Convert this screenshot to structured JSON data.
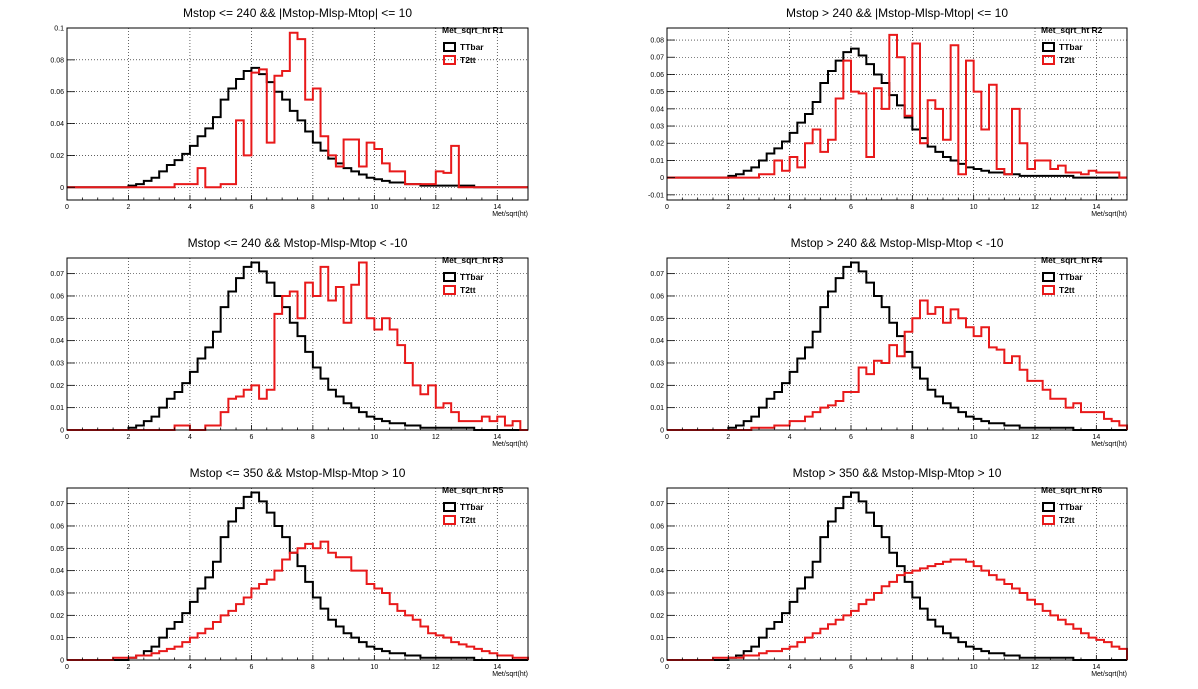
{
  "chart_data": [
    {
      "type": "histogram",
      "title": "Mstop <= 240 && |Mstop-Mlsp-Mtop| <= 10",
      "xlabel": "Met/sqrt(ht)",
      "legend_title": "Met_sqrt_ht  R1",
      "xlim": [
        0,
        15
      ],
      "ylim": [
        -0.008,
        0.1
      ],
      "yticks": [
        0,
        0.02,
        0.04,
        0.06,
        0.08,
        0.1
      ],
      "ytick_labels": [
        "0",
        "0.02",
        "0.04",
        "0.06",
        "0.08",
        "0.1"
      ],
      "xticks": [
        0,
        2,
        4,
        6,
        8,
        10,
        12,
        14
      ],
      "grid": true,
      "legend_position": "top-right",
      "bin_width": 0.25,
      "series": [
        {
          "name": "TTbar",
          "color": "#000000",
          "values": [
            0,
            0,
            0,
            0,
            0,
            0,
            0,
            0,
            0.001,
            0.002,
            0.004,
            0.006,
            0.01,
            0.014,
            0.017,
            0.021,
            0.026,
            0.032,
            0.037,
            0.044,
            0.055,
            0.062,
            0.068,
            0.073,
            0.075,
            0.071,
            0.066,
            0.06,
            0.055,
            0.048,
            0.042,
            0.035,
            0.028,
            0.023,
            0.018,
            0.015,
            0.012,
            0.01,
            0.008,
            0.006,
            0.005,
            0.004,
            0.003,
            0.003,
            0.002,
            0.002,
            0.001,
            0.001,
            0.001,
            0.001,
            0.001,
            0.001,
            0.001,
            0,
            0,
            0,
            0,
            0,
            0,
            0
          ]
        },
        {
          "name": "T2tt",
          "color": "#e8191a",
          "values": [
            0,
            0,
            0,
            0,
            0,
            0,
            0,
            0,
            0,
            0,
            0,
            0,
            0,
            0,
            0.002,
            0.002,
            0.002,
            0.012,
            0,
            0,
            0.002,
            0.002,
            0.042,
            0.02,
            0.072,
            0.074,
            0.028,
            0.07,
            0.073,
            0.097,
            0.093,
            0.055,
            0.062,
            0.032,
            0.02,
            0.013,
            0.03,
            0.03,
            0.013,
            0.028,
            0.024,
            0.015,
            0.01,
            0.01,
            0.002,
            0.002,
            0.002,
            0.002,
            0.01,
            0.009,
            0.026,
            0,
            0,
            0,
            0,
            0,
            0,
            0,
            0,
            0
          ]
        }
      ]
    },
    {
      "type": "histogram",
      "title": "Mstop > 240 && |Mstop-Mlsp-Mtop| <= 10",
      "xlabel": "Met/sqrt(ht)",
      "legend_title": "Met_sqrt_ht  R2",
      "xlim": [
        0,
        15
      ],
      "ylim": [
        -0.013,
        0.087
      ],
      "yticks": [
        -0.01,
        0,
        0.01,
        0.02,
        0.03,
        0.04,
        0.05,
        0.06,
        0.07,
        0.08
      ],
      "ytick_labels": [
        "-0.01",
        "0",
        "0.01",
        "0.02",
        "0.03",
        "0.04",
        "0.05",
        "0.06",
        "0.07",
        "0.08"
      ],
      "xticks": [
        0,
        2,
        4,
        6,
        8,
        10,
        12,
        14
      ],
      "grid": true,
      "legend_position": "top-right",
      "bin_width": 0.25,
      "series": [
        {
          "name": "TTbar",
          "color": "#000000",
          "values": [
            0,
            0,
            0,
            0,
            0,
            0,
            0,
            0,
            0.001,
            0.002,
            0.004,
            0.006,
            0.01,
            0.014,
            0.017,
            0.021,
            0.026,
            0.032,
            0.037,
            0.044,
            0.055,
            0.062,
            0.068,
            0.073,
            0.075,
            0.071,
            0.066,
            0.06,
            0.055,
            0.048,
            0.042,
            0.035,
            0.028,
            0.023,
            0.018,
            0.015,
            0.012,
            0.01,
            0.008,
            0.006,
            0.005,
            0.004,
            0.003,
            0.003,
            0.002,
            0.002,
            0.001,
            0.001,
            0.001,
            0.001,
            0.001,
            0.001,
            0.001,
            0,
            0,
            0,
            0,
            0,
            0,
            0
          ]
        },
        {
          "name": "T2tt",
          "color": "#e8191a",
          "values": [
            0,
            0,
            0,
            0,
            0,
            0,
            0,
            0,
            0,
            0,
            0,
            0,
            0.002,
            0.002,
            0.01,
            0.004,
            0.012,
            0.006,
            0.02,
            0.028,
            0.015,
            0.022,
            0.046,
            0.068,
            0.05,
            0.049,
            0.012,
            0.052,
            0.04,
            0.083,
            0.07,
            0.036,
            0.078,
            0.02,
            0.045,
            0.04,
            0.022,
            0.077,
            0.002,
            0.068,
            0.05,
            0.028,
            0.054,
            0.005,
            0.002,
            0.04,
            0.02,
            0.005,
            0.01,
            0.01,
            0.005,
            0.007,
            0.003,
            0.003,
            0.002,
            0.004,
            0.003,
            0.003,
            0.003,
            0
          ]
        }
      ]
    },
    {
      "type": "histogram",
      "title": "Mstop <= 240 && Mstop-Mlsp-Mtop < -10",
      "xlabel": "Met/sqrt(ht)",
      "legend_title": "Met_sqrt_ht  R3",
      "xlim": [
        0,
        15
      ],
      "ylim": [
        0,
        0.077
      ],
      "yticks": [
        0,
        0.01,
        0.02,
        0.03,
        0.04,
        0.05,
        0.06,
        0.07
      ],
      "ytick_labels": [
        "0",
        "0.01",
        "0.02",
        "0.03",
        "0.04",
        "0.05",
        "0.06",
        "0.07"
      ],
      "xticks": [
        0,
        2,
        4,
        6,
        8,
        10,
        12,
        14
      ],
      "grid": true,
      "legend_position": "top-right",
      "bin_width": 0.25,
      "series": [
        {
          "name": "TTbar",
          "color": "#000000",
          "values": [
            0,
            0,
            0,
            0,
            0,
            0,
            0,
            0,
            0.001,
            0.002,
            0.004,
            0.006,
            0.01,
            0.014,
            0.017,
            0.021,
            0.026,
            0.032,
            0.037,
            0.044,
            0.055,
            0.062,
            0.068,
            0.073,
            0.075,
            0.071,
            0.066,
            0.06,
            0.055,
            0.048,
            0.042,
            0.035,
            0.028,
            0.023,
            0.018,
            0.015,
            0.012,
            0.01,
            0.008,
            0.006,
            0.005,
            0.004,
            0.003,
            0.003,
            0.002,
            0.002,
            0.001,
            0.001,
            0.001,
            0.001,
            0.001,
            0.001,
            0.001,
            0,
            0,
            0,
            0,
            0,
            0,
            0
          ]
        },
        {
          "name": "T2tt",
          "color": "#e8191a",
          "values": [
            0,
            0,
            0,
            0,
            0,
            0,
            0,
            0,
            0,
            0,
            0,
            0,
            0,
            0,
            0.002,
            0.002,
            0,
            0,
            0.002,
            0.002,
            0.008,
            0.014,
            0.015,
            0.018,
            0.02,
            0.014,
            0.018,
            0.052,
            0.06,
            0.062,
            0.05,
            0.066,
            0.06,
            0.073,
            0.058,
            0.064,
            0.048,
            0.065,
            0.075,
            0.05,
            0.045,
            0.05,
            0.045,
            0.038,
            0.03,
            0.02,
            0.016,
            0.02,
            0.01,
            0.012,
            0.008,
            0.004,
            0.004,
            0.004,
            0.006,
            0.004,
            0.006,
            0.002,
            0.004,
            0
          ]
        }
      ]
    },
    {
      "type": "histogram",
      "title": "Mstop > 240 && Mstop-Mlsp-Mtop < -10",
      "xlabel": "Met/sqrt(ht)",
      "legend_title": "Met_sqrt_ht  R4",
      "xlim": [
        0,
        15
      ],
      "ylim": [
        0,
        0.077
      ],
      "yticks": [
        0,
        0.01,
        0.02,
        0.03,
        0.04,
        0.05,
        0.06,
        0.07
      ],
      "ytick_labels": [
        "0",
        "0.01",
        "0.02",
        "0.03",
        "0.04",
        "0.05",
        "0.06",
        "0.07"
      ],
      "xticks": [
        0,
        2,
        4,
        6,
        8,
        10,
        12,
        14
      ],
      "grid": true,
      "legend_position": "top-right",
      "bin_width": 0.25,
      "series": [
        {
          "name": "TTbar",
          "color": "#000000",
          "values": [
            0,
            0,
            0,
            0,
            0,
            0,
            0,
            0,
            0.001,
            0.002,
            0.004,
            0.006,
            0.01,
            0.014,
            0.017,
            0.021,
            0.026,
            0.032,
            0.037,
            0.044,
            0.055,
            0.062,
            0.068,
            0.073,
            0.075,
            0.071,
            0.066,
            0.06,
            0.055,
            0.048,
            0.042,
            0.035,
            0.028,
            0.023,
            0.018,
            0.015,
            0.012,
            0.01,
            0.008,
            0.006,
            0.005,
            0.004,
            0.003,
            0.003,
            0.002,
            0.002,
            0.001,
            0.001,
            0.001,
            0.001,
            0.001,
            0.001,
            0.001,
            0,
            0,
            0,
            0,
            0,
            0,
            0
          ]
        },
        {
          "name": "T2tt",
          "color": "#e8191a",
          "values": [
            0,
            0,
            0,
            0,
            0,
            0,
            0,
            0,
            0,
            0,
            0,
            0.001,
            0.001,
            0.001,
            0.002,
            0.002,
            0.004,
            0.004,
            0.006,
            0.008,
            0.01,
            0.011,
            0.013,
            0.017,
            0.017,
            0.028,
            0.025,
            0.031,
            0.03,
            0.038,
            0.033,
            0.044,
            0.05,
            0.058,
            0.052,
            0.055,
            0.048,
            0.054,
            0.05,
            0.046,
            0.042,
            0.046,
            0.037,
            0.036,
            0.03,
            0.033,
            0.027,
            0.022,
            0.022,
            0.018,
            0.014,
            0.014,
            0.01,
            0.012,
            0.008,
            0.008,
            0.008,
            0.005,
            0.004,
            0.002
          ]
        }
      ]
    },
    {
      "type": "histogram",
      "title": "Mstop <= 350 && Mstop-Mlsp-Mtop > 10",
      "xlabel": "Met/sqrt(ht)",
      "legend_title": "Met_sqrt_ht  R5",
      "xlim": [
        0,
        15
      ],
      "ylim": [
        0,
        0.077
      ],
      "yticks": [
        0,
        0.01,
        0.02,
        0.03,
        0.04,
        0.05,
        0.06,
        0.07
      ],
      "ytick_labels": [
        "0",
        "0.01",
        "0.02",
        "0.03",
        "0.04",
        "0.05",
        "0.06",
        "0.07"
      ],
      "xticks": [
        0,
        2,
        4,
        6,
        8,
        10,
        12,
        14
      ],
      "grid": true,
      "legend_position": "top-right",
      "bin_width": 0.25,
      "series": [
        {
          "name": "TTbar",
          "color": "#000000",
          "values": [
            0,
            0,
            0,
            0,
            0,
            0,
            0,
            0,
            0.001,
            0.002,
            0.004,
            0.006,
            0.01,
            0.014,
            0.017,
            0.021,
            0.026,
            0.032,
            0.037,
            0.044,
            0.055,
            0.062,
            0.068,
            0.073,
            0.075,
            0.071,
            0.066,
            0.06,
            0.055,
            0.048,
            0.042,
            0.035,
            0.028,
            0.023,
            0.018,
            0.015,
            0.012,
            0.01,
            0.008,
            0.006,
            0.005,
            0.004,
            0.003,
            0.003,
            0.002,
            0.002,
            0.001,
            0.001,
            0.001,
            0.001,
            0.001,
            0.001,
            0.001,
            0,
            0,
            0,
            0,
            0,
            0,
            0
          ]
        },
        {
          "name": "T2tt",
          "color": "#e8191a",
          "values": [
            0,
            0,
            0,
            0,
            0,
            0,
            0.001,
            0.001,
            0.001,
            0.002,
            0.002,
            0.003,
            0.004,
            0.005,
            0.006,
            0.008,
            0.01,
            0.012,
            0.014,
            0.017,
            0.02,
            0.022,
            0.025,
            0.028,
            0.032,
            0.034,
            0.036,
            0.04,
            0.045,
            0.048,
            0.05,
            0.052,
            0.05,
            0.053,
            0.048,
            0.046,
            0.046,
            0.04,
            0.04,
            0.034,
            0.032,
            0.03,
            0.025,
            0.022,
            0.02,
            0.018,
            0.015,
            0.012,
            0.011,
            0.01,
            0.008,
            0.007,
            0.006,
            0.005,
            0.004,
            0.003,
            0.002,
            0.002,
            0.001,
            0.001
          ]
        }
      ]
    },
    {
      "type": "histogram",
      "title": "Mstop > 350 && Mstop-Mlsp-Mtop > 10",
      "xlabel": "Met/sqrt(ht)",
      "legend_title": "Met_sqrt_ht  R6",
      "xlim": [
        0,
        15
      ],
      "ylim": [
        0,
        0.077
      ],
      "yticks": [
        0,
        0.01,
        0.02,
        0.03,
        0.04,
        0.05,
        0.06,
        0.07
      ],
      "ytick_labels": [
        "0",
        "0.01",
        "0.02",
        "0.03",
        "0.04",
        "0.05",
        "0.06",
        "0.07"
      ],
      "xticks": [
        0,
        2,
        4,
        6,
        8,
        10,
        12,
        14
      ],
      "grid": true,
      "legend_position": "top-right",
      "bin_width": 0.25,
      "series": [
        {
          "name": "TTbar",
          "color": "#000000",
          "values": [
            0,
            0,
            0,
            0,
            0,
            0,
            0,
            0,
            0.001,
            0.002,
            0.004,
            0.006,
            0.01,
            0.014,
            0.017,
            0.021,
            0.026,
            0.032,
            0.037,
            0.044,
            0.055,
            0.062,
            0.068,
            0.073,
            0.075,
            0.071,
            0.066,
            0.06,
            0.055,
            0.048,
            0.042,
            0.035,
            0.028,
            0.023,
            0.018,
            0.015,
            0.012,
            0.01,
            0.008,
            0.006,
            0.005,
            0.004,
            0.003,
            0.003,
            0.002,
            0.002,
            0.001,
            0.001,
            0.001,
            0.001,
            0.001,
            0.001,
            0.001,
            0,
            0,
            0,
            0,
            0,
            0,
            0
          ]
        },
        {
          "name": "T2tt",
          "color": "#e8191a",
          "values": [
            0,
            0,
            0,
            0,
            0,
            0,
            0.001,
            0.001,
            0.001,
            0.001,
            0.002,
            0.002,
            0.003,
            0.004,
            0.004,
            0.005,
            0.006,
            0.008,
            0.01,
            0.012,
            0.014,
            0.016,
            0.018,
            0.02,
            0.022,
            0.025,
            0.027,
            0.03,
            0.033,
            0.035,
            0.038,
            0.039,
            0.04,
            0.041,
            0.042,
            0.043,
            0.044,
            0.045,
            0.045,
            0.044,
            0.042,
            0.04,
            0.038,
            0.036,
            0.034,
            0.032,
            0.03,
            0.027,
            0.025,
            0.022,
            0.02,
            0.018,
            0.016,
            0.014,
            0.012,
            0.01,
            0.009,
            0.008,
            0.006,
            0.005
          ]
        }
      ]
    }
  ]
}
